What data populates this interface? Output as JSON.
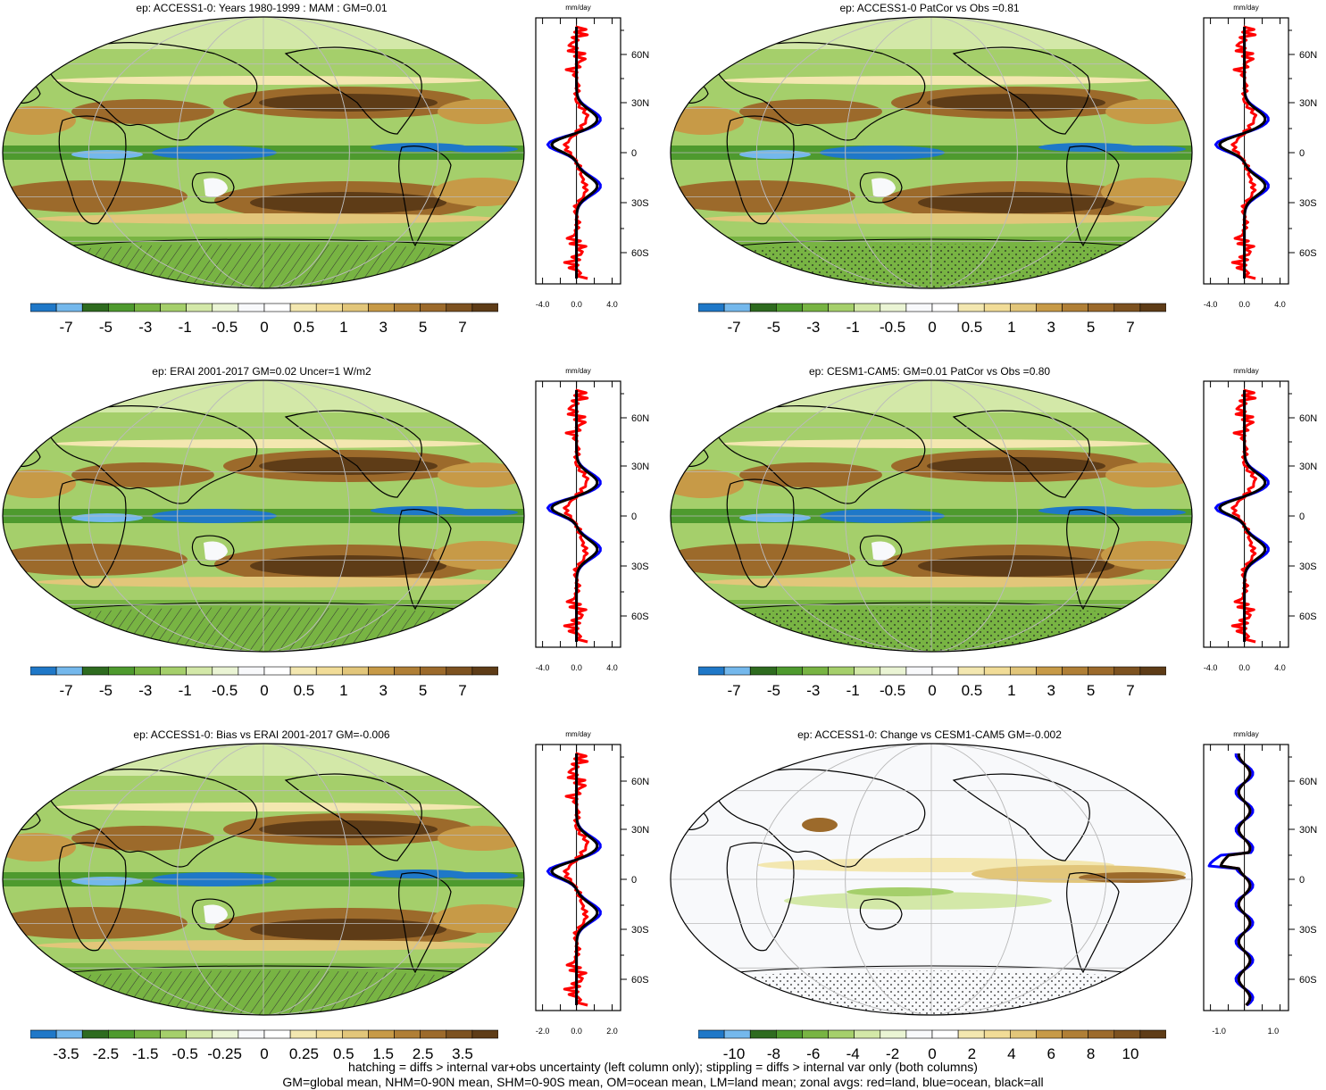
{
  "colors": {
    "blue_dark": "#1f78c8",
    "blue_light": "#74b8ec",
    "green_dark": "#2e6b1f",
    "green_mid": "#4e9a2e",
    "green": "#78b443",
    "green_light": "#a5cf6b",
    "green_pale": "#d3e8a8",
    "white": "#f8f9fb",
    "tan_pale": "#f3e7b0",
    "tan": "#e2c67a",
    "brown_light": "#c79a47",
    "brown": "#9c6a2b",
    "brown_dark": "#5e3c17",
    "zonal_land": "#ff0000",
    "zonal_ocean": "#0000ff",
    "zonal_all": "#000000"
  },
  "lat_labels": [
    "60N",
    "30N",
    "0",
    "30S",
    "60S"
  ],
  "zonal_unit": "mm/day",
  "panels": [
    {
      "title": "ep: ACCESS1-0: Years 1980-1999 : MAM : GM=0.01",
      "colorbar_labels": [
        "-7",
        "-5",
        "-3",
        "-1",
        "-0.5",
        "0",
        "0.5",
        "1",
        "3",
        "5",
        "7"
      ],
      "zonal_ticks": [
        "-4.0",
        "0.0",
        "4.0"
      ],
      "overlay": "hatch"
    },
    {
      "title": "ep: ACCESS1-0 PatCor vs Obs =0.81",
      "colorbar_labels": [
        "-7",
        "-5",
        "-3",
        "-1",
        "-0.5",
        "0",
        "0.5",
        "1",
        "3",
        "5",
        "7"
      ],
      "zonal_ticks": [
        "-4.0",
        "0.0",
        "4.0"
      ],
      "overlay": "stipple"
    },
    {
      "title": "ep: ERAI 2001-2017 GM=0.02 Uncer=1 W/m2",
      "colorbar_labels": [
        "-7",
        "-5",
        "-3",
        "-1",
        "-0.5",
        "0",
        "0.5",
        "1",
        "3",
        "5",
        "7"
      ],
      "zonal_ticks": [
        "-4.0",
        "0.0",
        "4.0"
      ],
      "overlay": "hatch"
    },
    {
      "title": "ep: CESM1-CAM5: GM=0.01 PatCor vs Obs =0.80",
      "colorbar_labels": [
        "-7",
        "-5",
        "-3",
        "-1",
        "-0.5",
        "0",
        "0.5",
        "1",
        "3",
        "5",
        "7"
      ],
      "zonal_ticks": [
        "-4.0",
        "0.0",
        "4.0"
      ],
      "overlay": "stipple"
    },
    {
      "title": "ep: ACCESS1-0: Bias vs ERAI 2001-2017 GM=-0.006",
      "colorbar_labels": [
        "-3.5",
        "-2.5",
        "-1.5",
        "-0.5",
        "-0.25",
        "0",
        "0.25",
        "0.5",
        "1.5",
        "2.5",
        "3.5"
      ],
      "zonal_ticks": [
        "-2.0",
        "0.0",
        "2.0"
      ],
      "overlay": "hatch"
    },
    {
      "title": "ep: ACCESS1-0: Change vs CESM1-CAM5 GM=-0.002",
      "colorbar_labels": [
        "-10",
        "-8",
        "-6",
        "-4",
        "-2",
        "0",
        "2",
        "4",
        "6",
        "8",
        "10"
      ],
      "zonal_ticks": [
        "-1.0",
        "1.0"
      ],
      "overlay": "stipple"
    }
  ],
  "footer": {
    "line1": "hatching = diffs > internal var+obs uncertainty (left column only); stippling = diffs > internal var only (both columns)",
    "line2": "GM=global mean, NHM=0-90N mean, SHM=0-90S mean, OM=ocean mean, LM=land mean; zonal avgs: red=land, blue=ocean, black=all"
  }
}
